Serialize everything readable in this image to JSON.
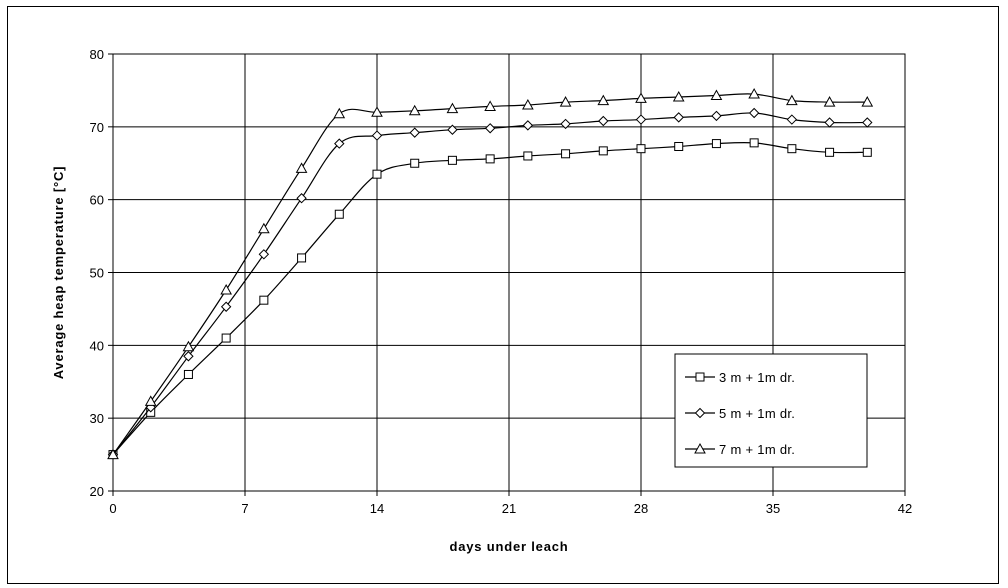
{
  "chart_data": {
    "type": "line",
    "title": "",
    "xlabel": "days under leach",
    "ylabel": "Average heap temperature [°C]",
    "xlim": [
      0,
      42
    ],
    "ylim": [
      20,
      80
    ],
    "xticks": [
      0,
      7,
      14,
      21,
      28,
      35,
      42
    ],
    "yticks": [
      20,
      30,
      40,
      50,
      60,
      70,
      80
    ],
    "grid": true,
    "legend_position": "lower-right",
    "colors": {
      "line": "#000000",
      "grid": "#000000",
      "background": "#ffffff"
    },
    "series": [
      {
        "name": "3 m + 1m dr.",
        "marker": "square",
        "x": [
          0,
          2,
          4,
          6,
          8,
          10,
          12,
          14,
          16,
          18,
          20,
          22,
          24,
          26,
          28,
          30,
          32,
          34,
          36,
          38,
          40
        ],
        "y": [
          25,
          30.8,
          36,
          41,
          46.2,
          52,
          58,
          63.5,
          65,
          65.4,
          65.6,
          66,
          66.3,
          66.7,
          67,
          67.3,
          67.7,
          67.8,
          67,
          66.5,
          66.5
        ]
      },
      {
        "name": "5 m + 1m dr.",
        "marker": "diamond",
        "x": [
          0,
          2,
          4,
          6,
          8,
          10,
          12,
          14,
          16,
          18,
          20,
          22,
          24,
          26,
          28,
          30,
          32,
          34,
          36,
          38,
          40
        ],
        "y": [
          25,
          31.5,
          38.5,
          45.3,
          52.5,
          60.2,
          67.7,
          68.8,
          69.2,
          69.6,
          69.8,
          70.2,
          70.4,
          70.8,
          71,
          71.3,
          71.5,
          71.9,
          71,
          70.6,
          70.6
        ]
      },
      {
        "name": "7 m + 1m dr.",
        "marker": "triangle",
        "x": [
          0,
          2,
          4,
          6,
          8,
          10,
          12,
          14,
          16,
          18,
          20,
          22,
          24,
          26,
          28,
          30,
          32,
          34,
          36,
          38,
          40
        ],
        "y": [
          25,
          32.3,
          39.8,
          47.6,
          56,
          64.3,
          71.8,
          72,
          72.2,
          72.5,
          72.8,
          73,
          73.4,
          73.6,
          73.9,
          74.1,
          74.3,
          74.5,
          73.6,
          73.4,
          73.4
        ]
      }
    ]
  }
}
